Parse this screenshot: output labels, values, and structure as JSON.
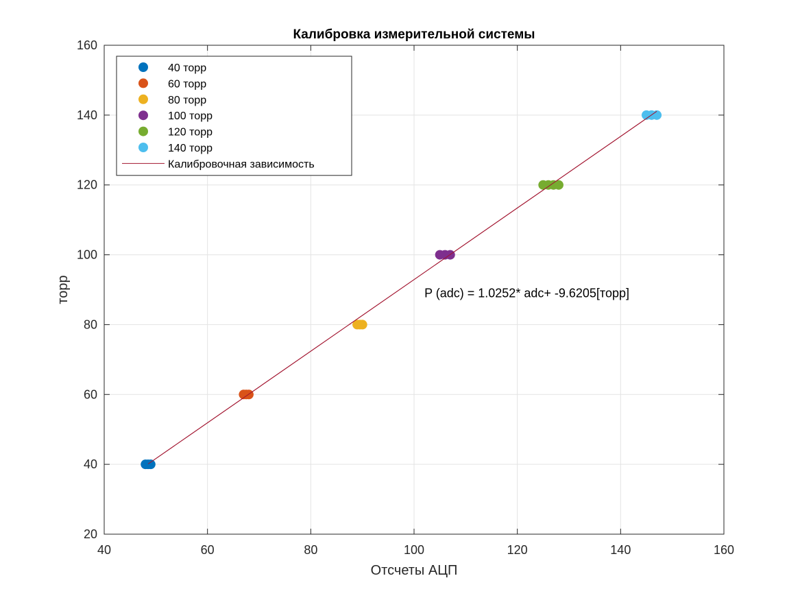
{
  "chart_data": {
    "type": "scatter",
    "title": "Калибровка измерительной системы",
    "xlabel": "Отсчеты АЦП",
    "ylabel": "торр",
    "xlim": [
      40,
      160
    ],
    "ylim": [
      20,
      160
    ],
    "xticks": [
      40,
      60,
      80,
      100,
      120,
      140,
      160
    ],
    "yticks": [
      20,
      40,
      60,
      80,
      100,
      120,
      140,
      160
    ],
    "xtick_labels": [
      "40",
      "60",
      "80",
      "100",
      "120",
      "140",
      "160"
    ],
    "ytick_labels": [
      "20",
      "40",
      "60",
      "80",
      "100",
      "120",
      "140",
      "160"
    ],
    "grid": true,
    "legend_position": "top-left",
    "series": [
      {
        "name": "40 торр",
        "color": "#0072BD",
        "x": [
          48,
          48.5,
          49
        ],
        "y": [
          40,
          40,
          40
        ]
      },
      {
        "name": "60 торр",
        "color": "#D95319",
        "x": [
          67,
          67.5,
          68
        ],
        "y": [
          60,
          60,
          60
        ]
      },
      {
        "name": "80 торр",
        "color": "#EDB120",
        "x": [
          89,
          89.5,
          90
        ],
        "y": [
          80,
          80,
          80
        ]
      },
      {
        "name": "100 торр",
        "color": "#7E2F8E",
        "x": [
          105,
          106,
          107
        ],
        "y": [
          100,
          100,
          100
        ]
      },
      {
        "name": "120 торр",
        "color": "#77AC30",
        "x": [
          125,
          126,
          127,
          128
        ],
        "y": [
          120,
          120,
          120,
          120
        ]
      },
      {
        "name": "140 торр",
        "color": "#4DBEEE",
        "x": [
          145,
          146,
          147
        ],
        "y": [
          140,
          140,
          140
        ]
      }
    ],
    "fit_line": {
      "name": "Калибровочная зависимость",
      "color": "#A2142F",
      "x": [
        48.5,
        147
      ],
      "slope": 1.0252,
      "intercept": -9.6205
    },
    "annotation": {
      "text": "P (adc) = 1.0252* adc+ -9.6205[торр]",
      "x": 102,
      "y": 89
    }
  }
}
